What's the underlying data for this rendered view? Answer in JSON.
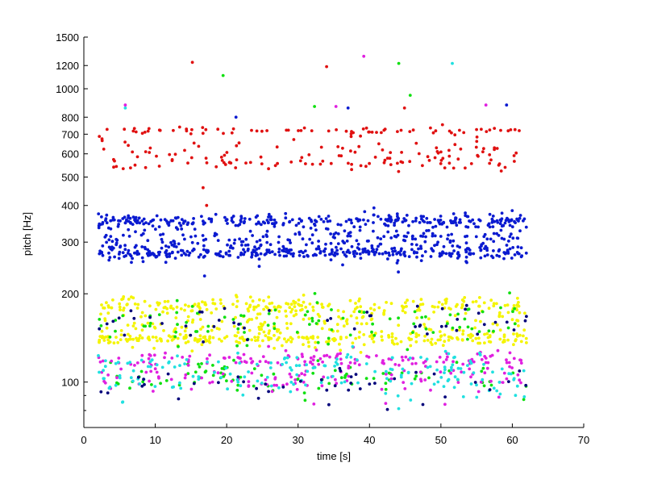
{
  "chart_data": {
    "type": "scatter",
    "title": "",
    "xlabel": "time [s]",
    "ylabel": "pitch [Hz]",
    "xlim": [
      0,
      70
    ],
    "ylim": [
      70,
      1500
    ],
    "yscale": "log",
    "grid": false,
    "x_ticks": [
      0,
      10,
      20,
      30,
      40,
      50,
      60,
      70
    ],
    "x_tick_labels": [
      "0",
      "10",
      "20",
      "30",
      "40",
      "50",
      "60",
      "70"
    ],
    "y_ticks": [
      100,
      200,
      300,
      400,
      500,
      600,
      700,
      800,
      1000,
      1200,
      1500
    ],
    "y_tick_labels": [
      "100",
      "200",
      "300",
      "400",
      "500",
      "600",
      "700",
      "800",
      "1000",
      "1200",
      "1500"
    ],
    "time_range": [
      2,
      62
    ],
    "series": [
      {
        "color": "#e01010",
        "bands": [
          [
            610,
            0.045
          ],
          [
            720,
            0.012
          ],
          [
            560,
            0.02
          ]
        ],
        "density": 3.5
      },
      {
        "color": "#0a1ad0",
        "bands": [
          [
            305,
            0.06
          ],
          [
            355,
            0.02
          ],
          [
            275,
            0.02
          ]
        ],
        "density": 14
      },
      {
        "color": "#f4f400",
        "bands": [
          [
            155,
            0.06
          ],
          [
            182,
            0.03
          ],
          [
            140,
            0.02
          ]
        ],
        "density": 10
      },
      {
        "color": "#10e010",
        "bands": [
          [
            160,
            0.07
          ],
          [
            105,
            0.06
          ]
        ],
        "density": 3
      },
      {
        "color": "#e020e0",
        "bands": [
          [
            105,
            0.07
          ],
          [
            120,
            0.03
          ]
        ],
        "density": 4
      },
      {
        "color": "#20e0e0",
        "bands": [
          [
            100,
            0.06
          ],
          [
            115,
            0.04
          ]
        ],
        "density": 3
      },
      {
        "color": "#00007a",
        "bands": [
          [
            100,
            0.06
          ],
          [
            160,
            0.05
          ]
        ],
        "density": 1.5
      }
    ],
    "outliers": [
      {
        "x": 15.2,
        "y": 1230,
        "color": "#e01010"
      },
      {
        "x": 19.5,
        "y": 1110,
        "color": "#10e010"
      },
      {
        "x": 21.3,
        "y": 800,
        "color": "#0a1ad0"
      },
      {
        "x": 32.3,
        "y": 870,
        "color": "#10e010"
      },
      {
        "x": 34.0,
        "y": 1190,
        "color": "#e01010"
      },
      {
        "x": 35.3,
        "y": 870,
        "color": "#e020e0"
      },
      {
        "x": 37.0,
        "y": 860,
        "color": "#0a1ad0"
      },
      {
        "x": 39.2,
        "y": 1290,
        "color": "#e020e0"
      },
      {
        "x": 44.1,
        "y": 1220,
        "color": "#10e010"
      },
      {
        "x": 44.9,
        "y": 860,
        "color": "#e01010"
      },
      {
        "x": 45.7,
        "y": 950,
        "color": "#10e010"
      },
      {
        "x": 51.6,
        "y": 1220,
        "color": "#20e0e0"
      },
      {
        "x": 56.3,
        "y": 880,
        "color": "#e020e0"
      },
      {
        "x": 59.2,
        "y": 880,
        "color": "#0a1ad0"
      },
      {
        "x": 5.8,
        "y": 860,
        "color": "#20e0e0"
      },
      {
        "x": 5.8,
        "y": 880,
        "color": "#e020e0"
      },
      {
        "x": 16.7,
        "y": 460,
        "color": "#e01010"
      },
      {
        "x": 16.9,
        "y": 230,
        "color": "#0a1ad0"
      },
      {
        "x": 17.2,
        "y": 400,
        "color": "#e01010"
      }
    ]
  }
}
